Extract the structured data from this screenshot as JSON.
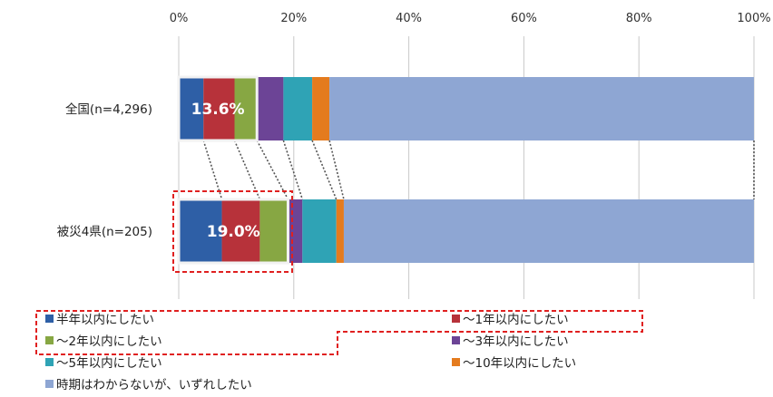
{
  "chart_data": {
    "type": "bar",
    "orientation": "horizontal",
    "stacked": true,
    "categories": [
      "全国(n=4,296)",
      "被災4県(n=205)"
    ],
    "xlim": [
      0,
      100
    ],
    "x_ticks": [
      "0%",
      "20%",
      "40%",
      "60%",
      "80%",
      "100%"
    ],
    "grid": true,
    "series": [
      {
        "name": "半年以内にしたい",
        "color": "#2E5FA6",
        "values": [
          4.3,
          7.5
        ]
      },
      {
        "name": "～1年以内にしたい",
        "color": "#B7323A",
        "values": [
          5.4,
          6.6
        ]
      },
      {
        "name": "～2年以内にしたい",
        "color": "#87A743",
        "values": [
          3.9,
          4.9
        ]
      },
      {
        "name": "～3年以内にしたい",
        "color": "#6C4496",
        "values": [
          4.6,
          2.5
        ]
      },
      {
        "name": "～5年以内にしたい",
        "color": "#2FA3B5",
        "values": [
          5.0,
          5.9
        ]
      },
      {
        "name": "～10年以内にしたい",
        "color": "#E47B1E",
        "values": [
          3.0,
          1.3
        ]
      },
      {
        "name": "時期はわからないが、いずれしたい",
        "color": "#8EA6D3",
        "values": [
          73.8,
          71.3
        ]
      }
    ],
    "annotations": [
      {
        "category_index": 0,
        "text": "13.6%"
      },
      {
        "category_index": 1,
        "text": "19.0%"
      }
    ],
    "legend_position": "bottom"
  }
}
